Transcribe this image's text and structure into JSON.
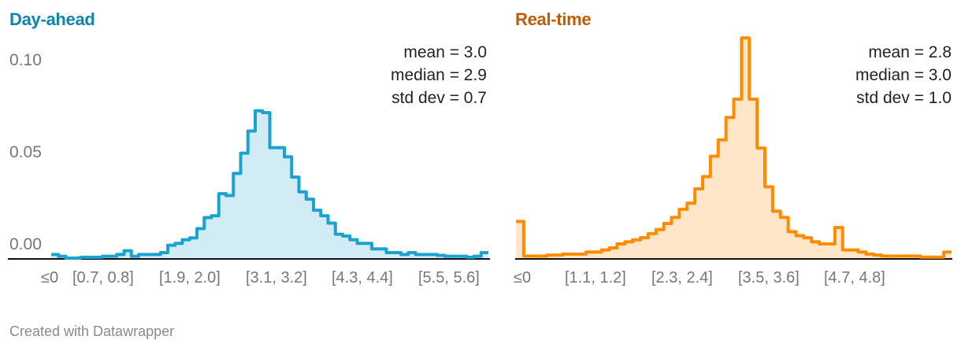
{
  "footer": "Created with Datawrapper",
  "colors": {
    "day_ahead_line": "#1aa2d0",
    "day_ahead_fill": "#d2ecf5",
    "day_ahead_title": "#0f85ac",
    "real_time_line": "#ff8c00",
    "real_time_fill": "#ffe6c9",
    "real_time_title": "#c05b00",
    "axis": "#111111"
  },
  "panels": {
    "left": {
      "title": "Day-ahead",
      "stats": [
        "mean = 3.0",
        "median = 2.9",
        "std dev = 0.7"
      ],
      "yticks": [
        "0.10",
        "0.05",
        "0.00"
      ],
      "xticks": [
        "≤0",
        "[0.7, 0.8]",
        "[1.9, 2.0]",
        "[3.1, 3.2]",
        "[4.3, 4.4]",
        "[5.5, 5.6]"
      ]
    },
    "right": {
      "title": "Real-time",
      "stats": [
        "mean = 2.8",
        "median = 3.0",
        "std dev = 1.0"
      ],
      "xticks": [
        "≤0",
        "[1.1, 1.2]",
        "[2.3, 2.4]",
        "[3.5, 3.6]",
        "[4.7, 4.8]"
      ]
    }
  },
  "chart_data": [
    {
      "type": "area",
      "title": "Day-ahead",
      "xlabel": "",
      "ylabel": "",
      "ylim": [
        0,
        0.12
      ],
      "yticks": [
        0.0,
        0.05,
        0.1
      ],
      "grid": false,
      "stats": {
        "mean": 3.0,
        "median": 2.9,
        "std_dev": 0.7
      },
      "tick_labels": [
        "≤0",
        "[0.7, 0.8]",
        "[1.9, 2.0]",
        "[3.1, 3.2]",
        "[4.3, 4.4]",
        "[5.5, 5.6]"
      ],
      "values": [
        0.002,
        0.001,
        0.0,
        0.0,
        0.0005,
        0.0005,
        0.0005,
        0.001,
        0.001,
        0.002,
        0.004,
        0.001,
        0.002,
        0.002,
        0.002,
        0.003,
        0.007,
        0.008,
        0.01,
        0.011,
        0.016,
        0.022,
        0.023,
        0.035,
        0.034,
        0.046,
        0.057,
        0.069,
        0.08,
        0.079,
        0.06,
        0.06,
        0.055,
        0.044,
        0.036,
        0.032,
        0.026,
        0.023,
        0.019,
        0.013,
        0.012,
        0.01,
        0.008,
        0.008,
        0.005,
        0.005,
        0.003,
        0.003,
        0.002,
        0.003,
        0.002,
        0.002,
        0.002,
        0.0015,
        0.001,
        0.001,
        0.001,
        0.0005,
        0.001,
        0.003
      ]
    },
    {
      "type": "area",
      "title": "Real-time",
      "xlabel": "",
      "ylabel": "",
      "ylim": [
        0,
        0.12
      ],
      "yticks": [
        0.0,
        0.05,
        0.1
      ],
      "grid": false,
      "stats": {
        "mean": 2.8,
        "median": 3.0,
        "std_dev": 1.0
      },
      "tick_labels": [
        "≤0",
        "[1.1, 1.2]",
        "[2.3, 2.4]",
        "[3.5, 3.6]",
        "[4.7, 4.8]"
      ],
      "values": [
        0.018,
        0.001,
        0.001,
        0.001,
        0.0015,
        0.0015,
        0.002,
        0.002,
        0.002,
        0.003,
        0.003,
        0.004,
        0.005,
        0.007,
        0.008,
        0.009,
        0.01,
        0.012,
        0.014,
        0.017,
        0.02,
        0.024,
        0.027,
        0.034,
        0.04,
        0.05,
        0.058,
        0.069,
        0.078,
        0.108,
        0.078,
        0.054,
        0.035,
        0.023,
        0.02,
        0.013,
        0.011,
        0.01,
        0.008,
        0.007,
        0.007,
        0.015,
        0.004,
        0.004,
        0.003,
        0.002,
        0.0015,
        0.001,
        0.001,
        0.001,
        0.001,
        0.001,
        0.0005,
        0.0005,
        0.0005,
        0.003
      ]
    }
  ]
}
